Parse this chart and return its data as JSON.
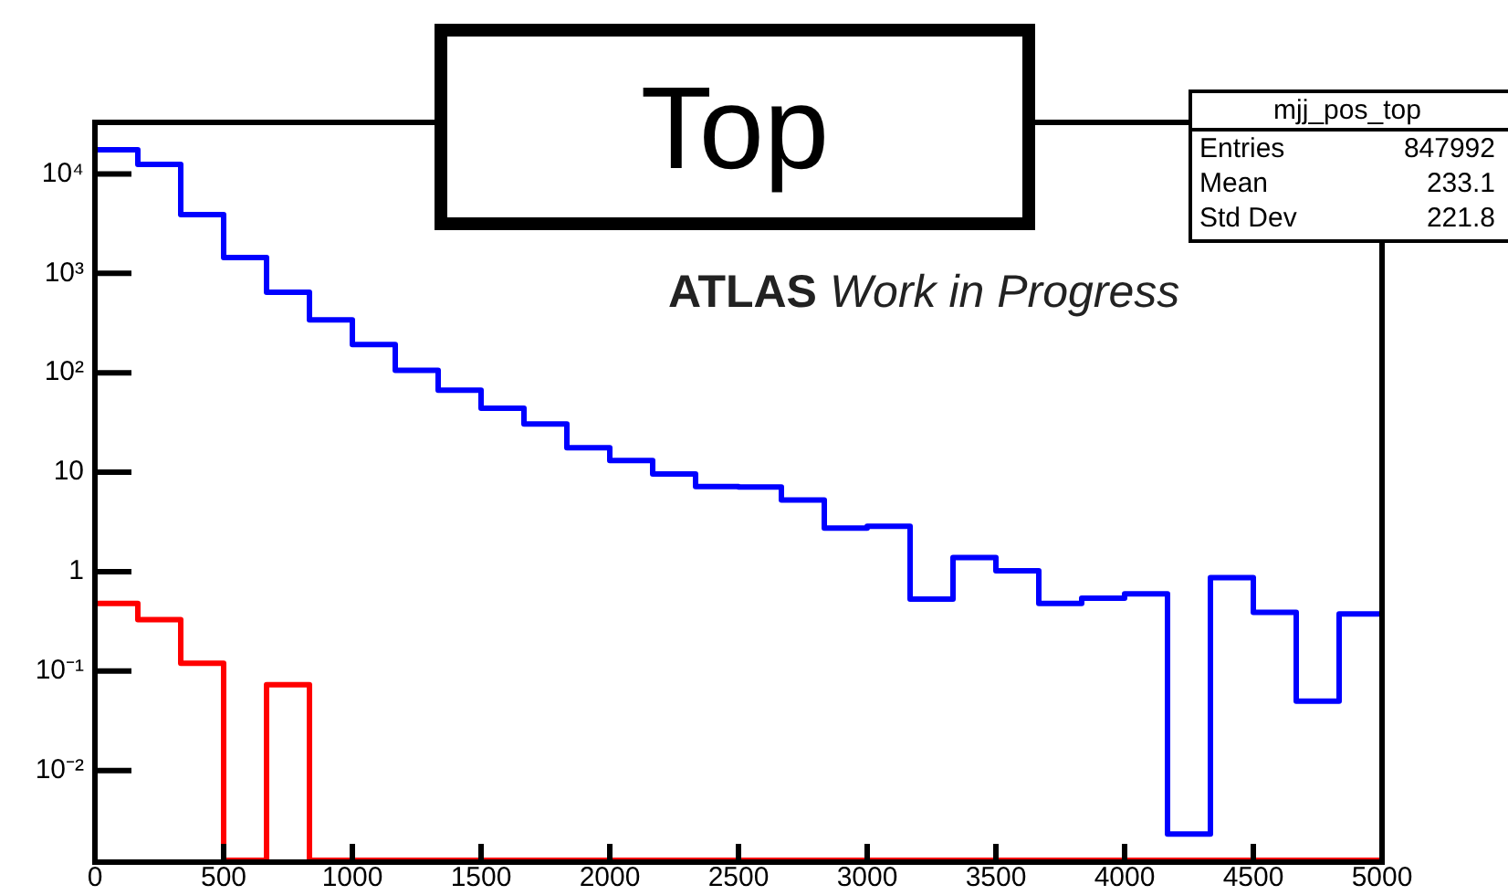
{
  "chart_data": {
    "type": "histogram",
    "title": "Top",
    "bins": [
      0,
      166.67,
      333.33,
      500,
      666.67,
      833.33,
      1000,
      1166.67,
      1333.33,
      1500,
      1666.67,
      1833.33,
      2000,
      2166.67,
      2333.33,
      2500,
      2666.67,
      2833.33,
      3000,
      3166.67,
      3333.33,
      3500,
      3666.67,
      3833.33,
      4000,
      4166.67,
      4333.33,
      4500,
      4666.67,
      4833.33,
      5000
    ],
    "series": [
      {
        "color": "#0000ff",
        "values": [
          17500,
          12500,
          3900,
          1440,
          645,
          340,
          192,
          106,
          67,
          44,
          30.5,
          17.6,
          13.1,
          9.6,
          7.2,
          7.1,
          5.25,
          2.74,
          2.86,
          0.53,
          1.39,
          1.02,
          0.48,
          0.54,
          0.6,
          0.0023,
          0.87,
          0.39,
          0.05,
          0.375
        ]
      },
      {
        "color": "#ff0000",
        "values": [
          0.48,
          0.33,
          0.12,
          null,
          0.073,
          null,
          null,
          null,
          null,
          null,
          null,
          null,
          null,
          null,
          null,
          null,
          null,
          null,
          null,
          null,
          null,
          null,
          null,
          null,
          null,
          null,
          null,
          null,
          null,
          null
        ]
      }
    ],
    "xlim": [
      0,
      5000
    ],
    "xticks": [
      0,
      500,
      1000,
      1500,
      2000,
      2500,
      3000,
      3500,
      4000,
      4500,
      5000
    ],
    "ylim": [
      0.0012,
      33000
    ],
    "log": "y",
    "yticks": [
      {
        "value": 0.01,
        "label": "10⁻²"
      },
      {
        "value": 0.1,
        "label": "10⁻¹"
      },
      1,
      10,
      {
        "value": 100,
        "label": "10²"
      },
      {
        "value": 1000,
        "label": "10³"
      },
      {
        "value": 10000,
        "label": "10⁴"
      }
    ],
    "annotations": [
      "ATLAS",
      "Work in Progress",
      "mjj_pos_top",
      "Entries",
      "847992",
      "Mean",
      "233.1",
      "Std Dev",
      "221.8"
    ]
  }
}
